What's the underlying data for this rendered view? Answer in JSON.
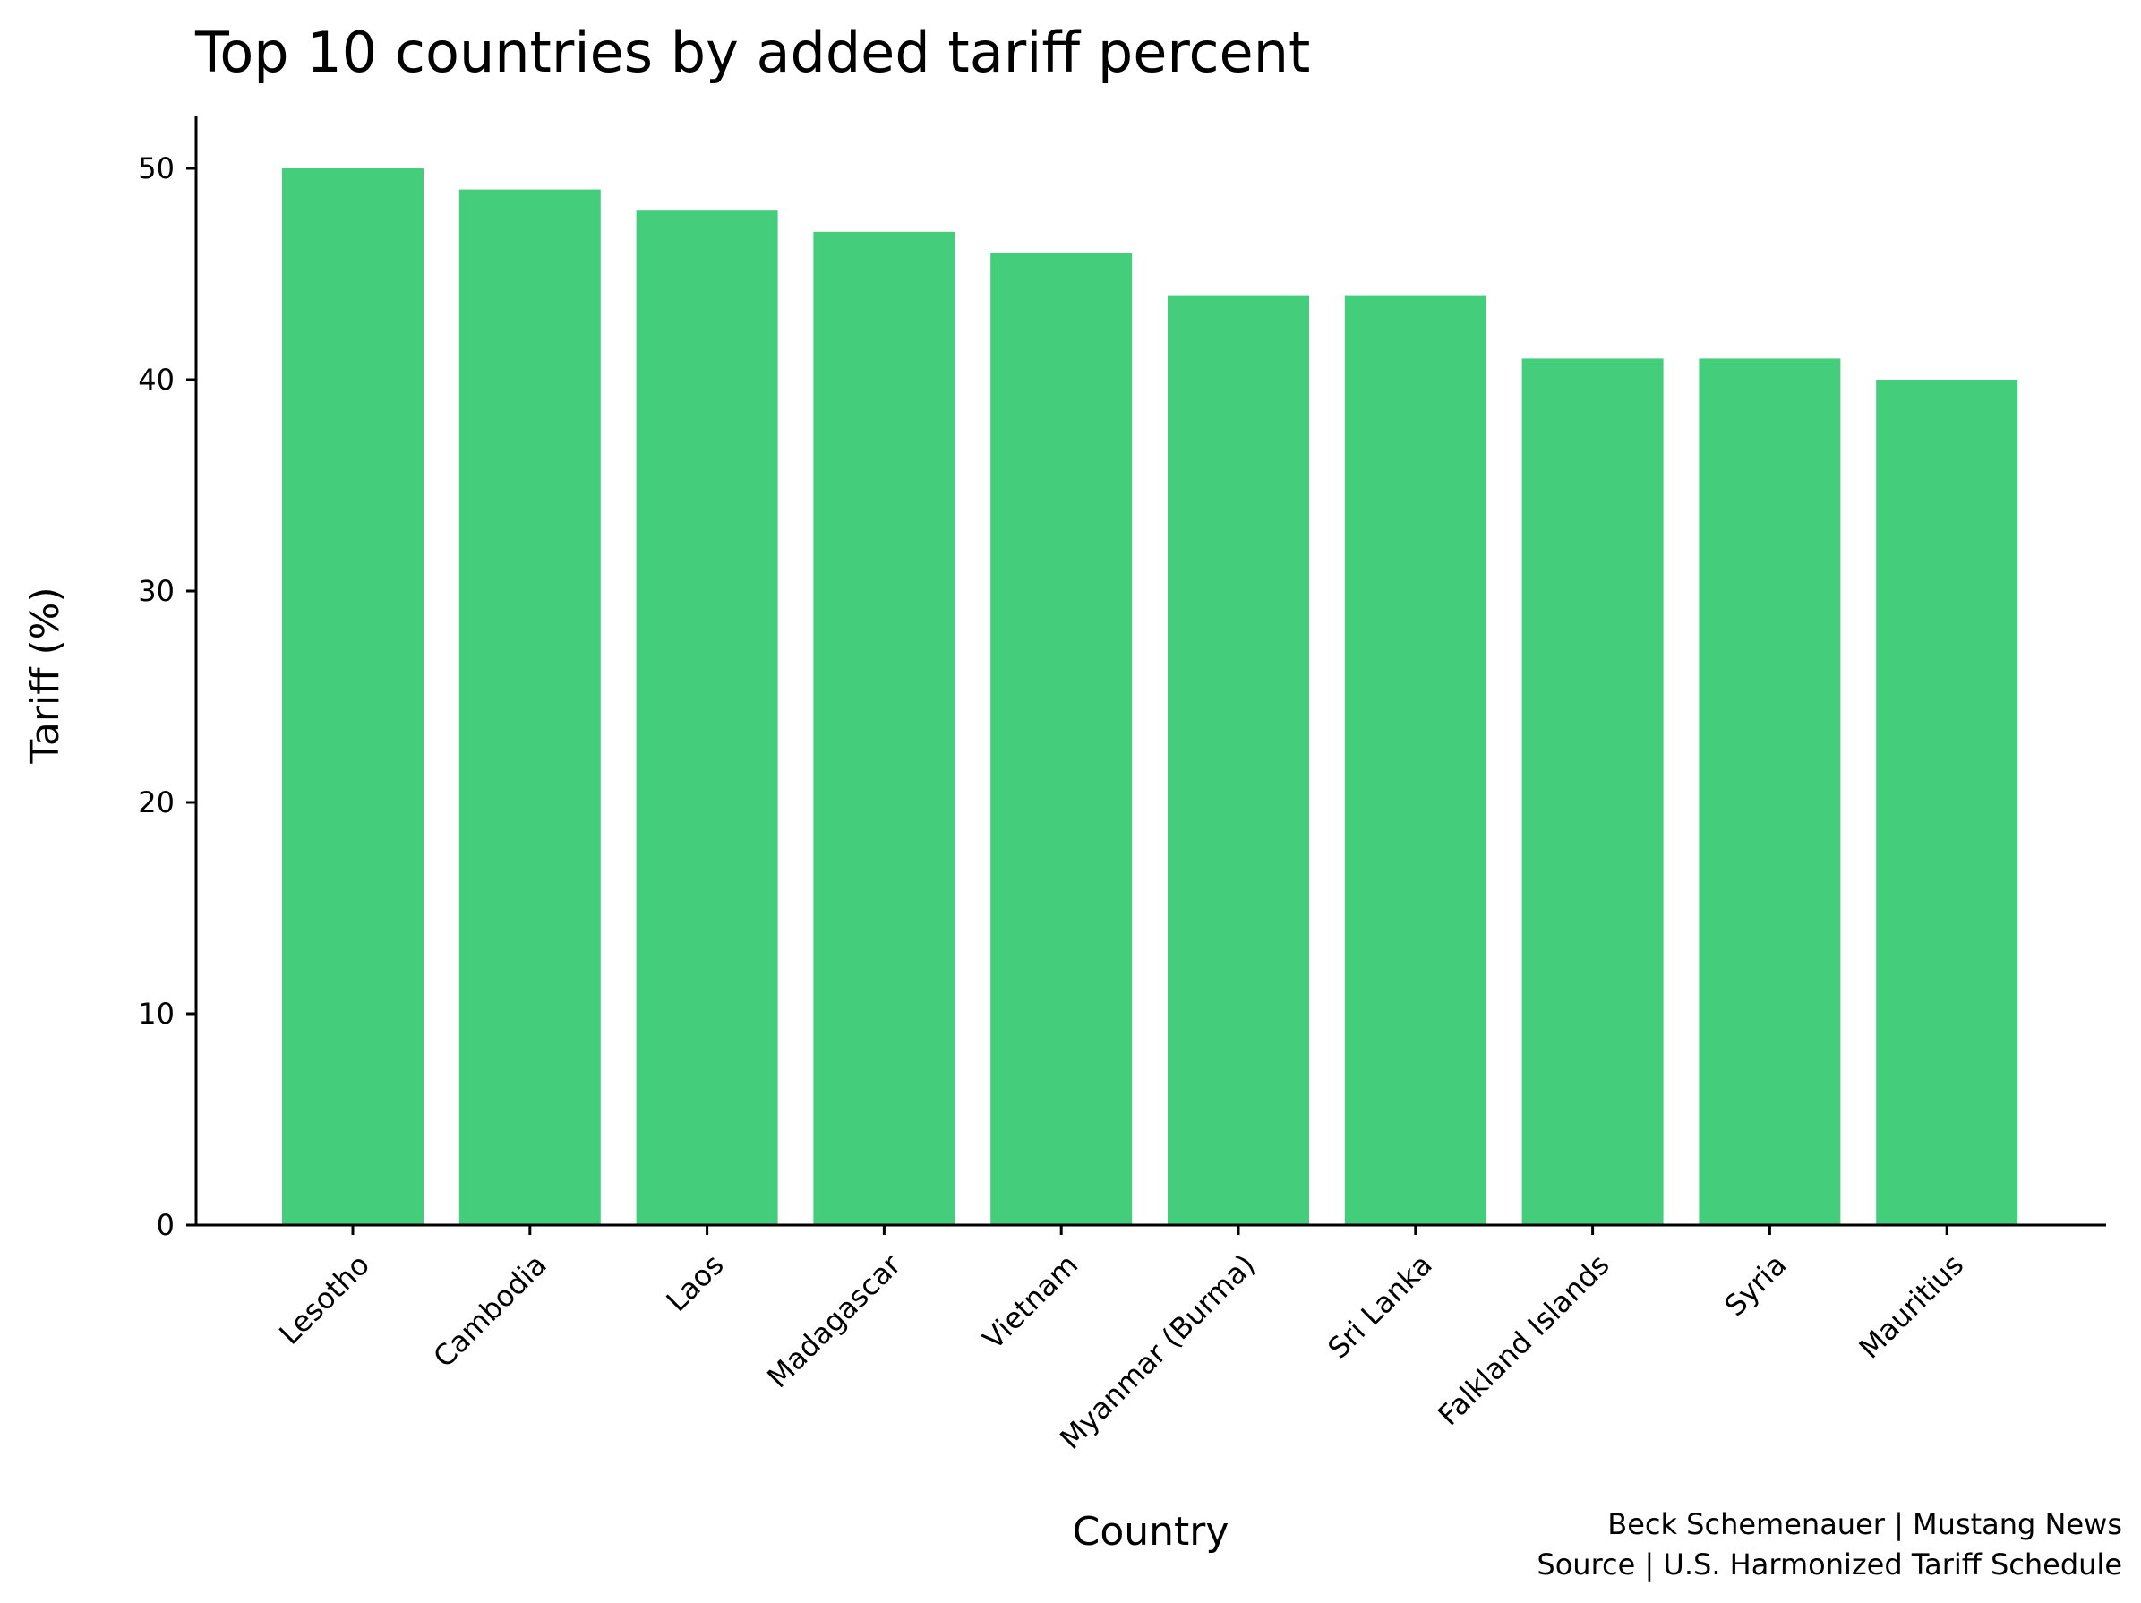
{
  "chart_data": {
    "type": "bar",
    "title": "Top 10 countries by added tariff percent",
    "xlabel": "Country",
    "ylabel": "Tariff (%)",
    "categories": [
      "Lesotho",
      "Cambodia",
      "Laos",
      "Madagascar",
      "Vietnam",
      "Myanmar (Burma)",
      "Sri Lanka",
      "Falkland Islands",
      "Syria",
      "Mauritius"
    ],
    "values": [
      50,
      49,
      48,
      47,
      46,
      44,
      44,
      41,
      41,
      40
    ],
    "ylim": [
      0,
      52.5
    ],
    "yticks": [
      0,
      10,
      20,
      30,
      40,
      50
    ],
    "grid": false,
    "legend": "none",
    "bar_color": "#44CE7B",
    "credits": {
      "line1": "Beck Schemenauer | Mustang News",
      "line2": "Source | U.S. Harmonized Tariff Schedule"
    }
  }
}
